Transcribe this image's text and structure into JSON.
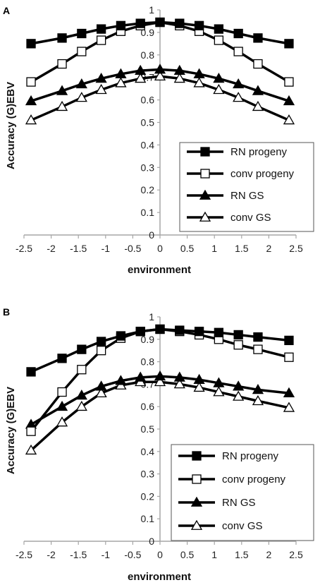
{
  "figure": {
    "background": "#ffffff",
    "line_color": "#000000",
    "axis_color": "#a6a6a6"
  },
  "chart_data": [
    {
      "panel": "A",
      "type": "line",
      "xlabel": "environment",
      "ylabel": "Accuracy (G)EBV",
      "xlim": [
        -2.5,
        2.5
      ],
      "ylim": [
        0,
        1
      ],
      "xticks": [
        -2.5,
        -2,
        -1.5,
        -1,
        -0.5,
        0,
        0.5,
        1,
        1.5,
        2,
        2.5
      ],
      "yticks": [
        0,
        0.1,
        0.2,
        0.3,
        0.4,
        0.5,
        0.6,
        0.7,
        0.8,
        0.9,
        1
      ],
      "xtick_labels": [
        "-2.5",
        "-2",
        "-1.5",
        "-1",
        "-0.5",
        "0",
        "0.5",
        "1",
        "1.5",
        "2",
        "2.5"
      ],
      "ytick_labels": [
        "0",
        "0.1",
        "0.2",
        "0.3",
        "0.4",
        "0.5",
        "0.6",
        "0.7",
        "0.8",
        "0.9",
        "1"
      ],
      "grid": false,
      "legend_position": "bottom-right",
      "x": [
        -2.37,
        -1.8,
        -1.44,
        -1.08,
        -0.72,
        -0.36,
        0,
        0.36,
        0.72,
        1.08,
        1.44,
        1.8,
        2.37
      ],
      "series": [
        {
          "name": "RN progeny",
          "marker": "square-filled",
          "values": [
            0.85,
            0.875,
            0.895,
            0.915,
            0.93,
            0.94,
            0.945,
            0.94,
            0.93,
            0.915,
            0.895,
            0.875,
            0.85
          ]
        },
        {
          "name": "conv progeny",
          "marker": "square-open",
          "values": [
            0.68,
            0.76,
            0.815,
            0.865,
            0.905,
            0.93,
            0.945,
            0.93,
            0.905,
            0.865,
            0.815,
            0.76,
            0.68
          ]
        },
        {
          "name": "RN GS",
          "marker": "triangle-filled",
          "values": [
            0.595,
            0.64,
            0.67,
            0.695,
            0.715,
            0.73,
            0.735,
            0.73,
            0.715,
            0.695,
            0.67,
            0.64,
            0.595
          ]
        },
        {
          "name": "conv GS",
          "marker": "triangle-open",
          "values": [
            0.51,
            0.57,
            0.61,
            0.645,
            0.675,
            0.695,
            0.705,
            0.695,
            0.675,
            0.645,
            0.61,
            0.57,
            0.51
          ]
        }
      ]
    },
    {
      "panel": "B",
      "type": "line",
      "xlabel": "environment",
      "ylabel": "Accuracy (G)EBV",
      "xlim": [
        -2.5,
        2.5
      ],
      "ylim": [
        0,
        1
      ],
      "xticks": [
        -2.5,
        -2,
        -1.5,
        -1,
        -0.5,
        0,
        0.5,
        1,
        1.5,
        2,
        2.5
      ],
      "yticks": [
        0,
        0.1,
        0.2,
        0.3,
        0.4,
        0.5,
        0.6,
        0.7,
        0.8,
        0.9,
        1
      ],
      "xtick_labels": [
        "-2.5",
        "-2",
        "-1.5",
        "-1",
        "-0.5",
        "0",
        "0.5",
        "1",
        "1.5",
        "2",
        "2.5"
      ],
      "ytick_labels": [
        "0",
        "0.1",
        "0.2",
        "0.3",
        "0.4",
        "0.5",
        "0.6",
        "0.7",
        "0.8",
        "0.9",
        "1"
      ],
      "grid": false,
      "legend_position": "bottom-right",
      "x": [
        -2.37,
        -1.8,
        -1.44,
        -1.08,
        -0.72,
        -0.36,
        0,
        0.36,
        0.72,
        1.08,
        1.44,
        1.8,
        2.37
      ],
      "series": [
        {
          "name": "RN progeny",
          "marker": "square-filled",
          "values": [
            0.755,
            0.815,
            0.855,
            0.89,
            0.915,
            0.935,
            0.945,
            0.94,
            0.935,
            0.93,
            0.92,
            0.91,
            0.895
          ]
        },
        {
          "name": "conv progeny",
          "marker": "square-open",
          "values": [
            0.49,
            0.665,
            0.765,
            0.85,
            0.905,
            0.935,
            0.945,
            0.935,
            0.92,
            0.9,
            0.875,
            0.855,
            0.82
          ]
        },
        {
          "name": "RN GS",
          "marker": "triangle-filled",
          "values": [
            0.52,
            0.6,
            0.65,
            0.69,
            0.715,
            0.73,
            0.735,
            0.73,
            0.72,
            0.705,
            0.69,
            0.675,
            0.66
          ]
        },
        {
          "name": "conv GS",
          "marker": "triangle-open",
          "values": [
            0.405,
            0.53,
            0.6,
            0.66,
            0.695,
            0.71,
            0.71,
            0.7,
            0.685,
            0.665,
            0.645,
            0.625,
            0.595
          ]
        }
      ]
    }
  ]
}
